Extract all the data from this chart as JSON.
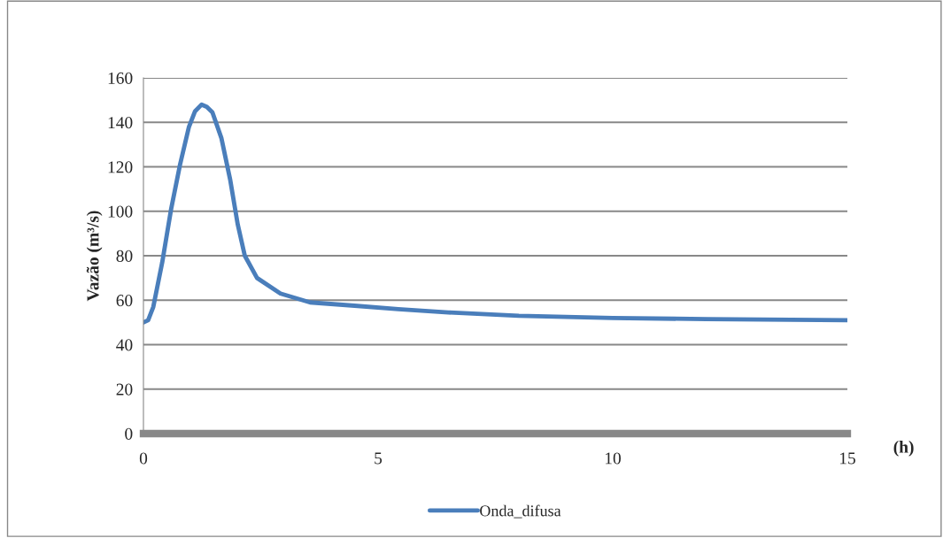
{
  "chart_data": {
    "type": "line",
    "ylabel": "Vazão (m³/s)",
    "xlabel": "(h)",
    "xlim": [
      0,
      15
    ],
    "xticks": [
      0,
      5,
      10,
      15
    ],
    "ylim": [
      0,
      160
    ],
    "yticks": [
      0,
      20,
      40,
      60,
      80,
      100,
      120,
      140,
      160
    ],
    "grid": "y",
    "legend": "bottom",
    "marker": "none",
    "line_style": "solid",
    "series": [
      {
        "name": "Onda_difusa",
        "color": "#4a7ebb",
        "x": [
          0,
          0.1,
          0.21,
          0.4,
          0.59,
          0.78,
          0.97,
          1.1,
          1.24,
          1.35,
          1.47,
          1.66,
          1.85,
          2.01,
          2.16,
          2.42,
          2.92,
          3.55,
          4.5,
          5.43,
          6.5,
          8,
          10,
          12,
          15
        ],
        "values": [
          50,
          51,
          57,
          77,
          101,
          121,
          138,
          145,
          148,
          147,
          144.5,
          133,
          114,
          94,
          80,
          70,
          63,
          59,
          57.5,
          56,
          54.5,
          53,
          52,
          51.5,
          51
        ]
      }
    ]
  }
}
